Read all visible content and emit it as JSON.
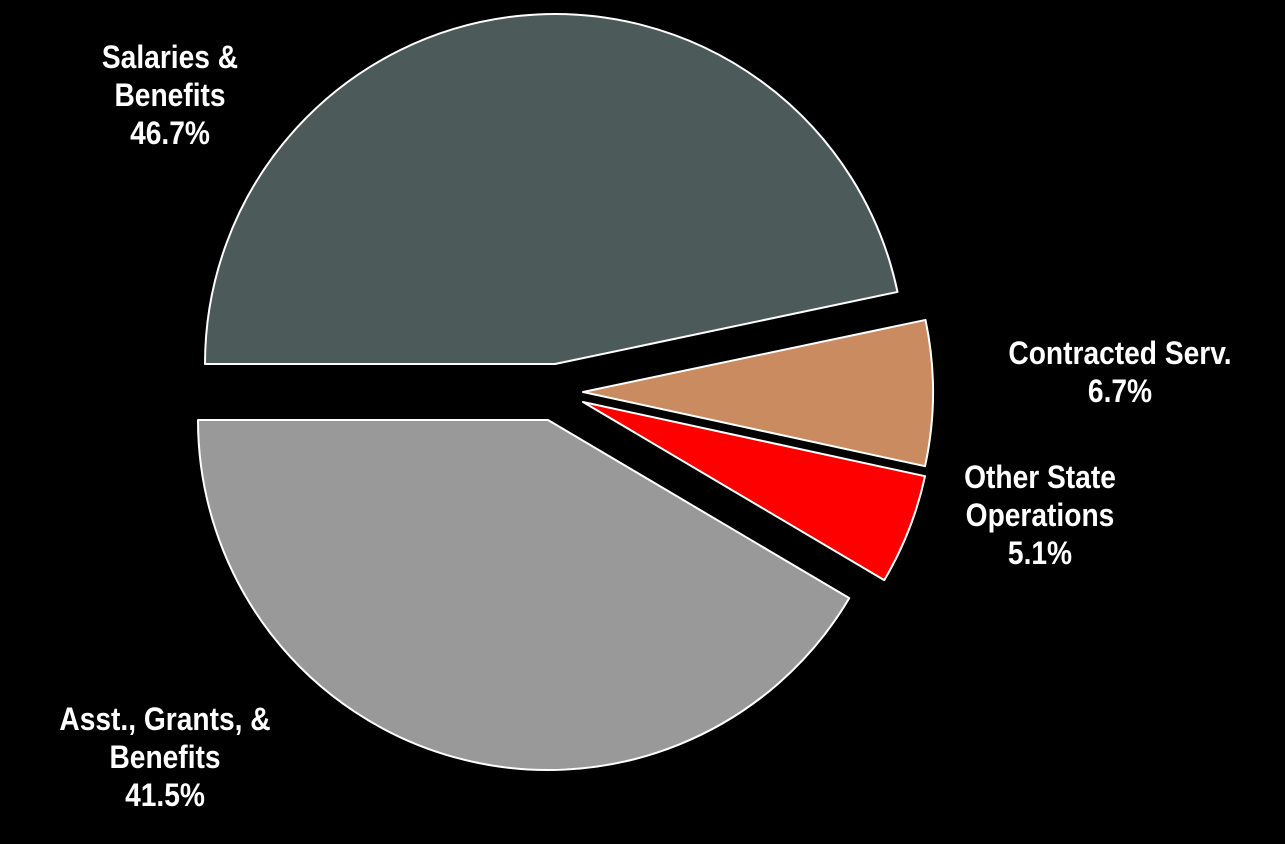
{
  "chart_data": {
    "type": "pie",
    "title": "",
    "exploded": true,
    "start": "clockwise from 9 o'clock",
    "slices": [
      {
        "key": "salaries",
        "label_lines": [
          "Salaries &",
          "Benefits"
        ],
        "percent_label": "46.7%",
        "value": 46.7,
        "color": "#4D5A5A"
      },
      {
        "key": "contracted",
        "label_lines": [
          "Contracted Serv."
        ],
        "percent_label": "6.7%",
        "value": 6.7,
        "color": "#C98B5F"
      },
      {
        "key": "other",
        "label_lines": [
          "Other State",
          "Operations"
        ],
        "percent_label": "5.1%",
        "value": 5.1,
        "color": "#FF0000"
      },
      {
        "key": "asst",
        "label_lines": [
          "Asst., Grants, &",
          "Benefits"
        ],
        "percent_label": "41.5%",
        "value": 41.5,
        "color": "#999999"
      }
    ]
  }
}
